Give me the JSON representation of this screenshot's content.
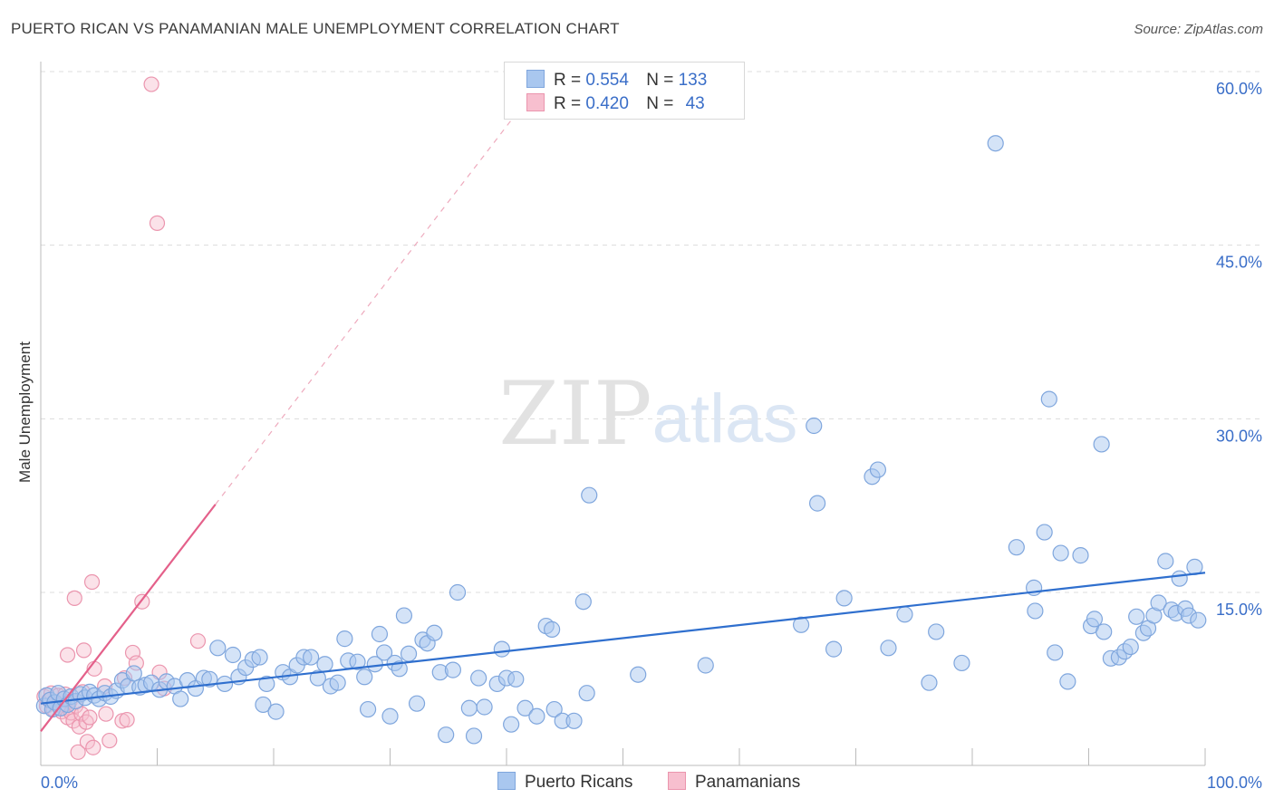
{
  "title": "PUERTO RICAN VS PANAMANIAN MALE UNEMPLOYMENT CORRELATION CHART",
  "source": "Source: ZipAtlas.com",
  "watermark": {
    "zip": "ZIP",
    "atlas": "atlas"
  },
  "legend_top": {
    "rows": [
      {
        "r_label": "R =",
        "r_value": "0.554",
        "n_label": "N =",
        "n_value": "133"
      },
      {
        "r_label": "R =",
        "r_value": "0.420",
        "n_label": "N =",
        "n_value": "43"
      }
    ]
  },
  "legend_bottom": {
    "series1": "Puerto Ricans",
    "series2": "Panamanians"
  },
  "colors": {
    "blue_fill": "#a9c7ef",
    "blue_stroke": "#7fa6dd",
    "blue_line": "#2f6fce",
    "pink_fill": "#f7bfcf",
    "pink_stroke": "#eb95ae",
    "pink_line": "#e4608a",
    "axis_text": "#3a6ec8",
    "grid": "#dcdcdc"
  },
  "chart_data": {
    "type": "scatter",
    "title": "PUERTO RICAN VS PANAMANIAN MALE UNEMPLOYMENT CORRELATION CHART",
    "xlabel": "",
    "ylabel": "Male Unemployment",
    "xlim": [
      0,
      100
    ],
    "ylim": [
      0,
      63
    ],
    "x_tick_labels": [
      "0.0%",
      "100.0%"
    ],
    "y_ticks": [
      15,
      30,
      45,
      60
    ],
    "y_tick_labels": [
      "15.0%",
      "30.0%",
      "45.0%",
      "60.0%"
    ],
    "series": [
      {
        "name": "Puerto Ricans",
        "r": 0.554,
        "n": 133,
        "trend": {
          "x": [
            0,
            100
          ],
          "y": [
            5.4,
            16.7
          ]
        },
        "points": [
          [
            0.3,
            5.2
          ],
          [
            0.5,
            6.1
          ],
          [
            0.8,
            5.7
          ],
          [
            1.0,
            4.9
          ],
          [
            1.2,
            5.5
          ],
          [
            1.5,
            6.3
          ],
          [
            1.7,
            5.0
          ],
          [
            2.0,
            5.8
          ],
          [
            2.3,
            5.3
          ],
          [
            2.6,
            6.0
          ],
          [
            3.0,
            5.6
          ],
          [
            3.4,
            6.2
          ],
          [
            3.8,
            5.9
          ],
          [
            4.2,
            6.4
          ],
          [
            4.6,
            6.1
          ],
          [
            5.0,
            5.8
          ],
          [
            5.5,
            6.3
          ],
          [
            6.0,
            6.0
          ],
          [
            6.5,
            6.5
          ],
          [
            7.0,
            7.4
          ],
          [
            7.5,
            6.9
          ],
          [
            8.0,
            8.0
          ],
          [
            8.5,
            6.8
          ],
          [
            9.0,
            7.0
          ],
          [
            9.5,
            7.2
          ],
          [
            10.2,
            6.6
          ],
          [
            10.8,
            7.3
          ],
          [
            11.5,
            6.9
          ],
          [
            12.0,
            5.8
          ],
          [
            12.6,
            7.4
          ],
          [
            13.3,
            6.7
          ],
          [
            14.0,
            7.6
          ],
          [
            14.5,
            7.5
          ],
          [
            15.2,
            10.2
          ],
          [
            15.8,
            7.1
          ],
          [
            16.5,
            9.6
          ],
          [
            17.0,
            7.7
          ],
          [
            17.6,
            8.5
          ],
          [
            18.2,
            9.2
          ],
          [
            18.8,
            9.4
          ],
          [
            19.4,
            7.1
          ],
          [
            19.1,
            5.3
          ],
          [
            20.2,
            4.7
          ],
          [
            20.8,
            8.1
          ],
          [
            21.4,
            7.7
          ],
          [
            22.0,
            8.7
          ],
          [
            22.6,
            9.4
          ],
          [
            23.2,
            9.4
          ],
          [
            23.8,
            7.6
          ],
          [
            24.4,
            8.8
          ],
          [
            24.9,
            6.9
          ],
          [
            25.5,
            7.2
          ],
          [
            26.1,
            11.0
          ],
          [
            26.4,
            9.1
          ],
          [
            27.2,
            9.0
          ],
          [
            27.8,
            7.7
          ],
          [
            28.1,
            4.9
          ],
          [
            28.7,
            8.8
          ],
          [
            29.1,
            11.4
          ],
          [
            29.5,
            9.8
          ],
          [
            30.0,
            4.3
          ],
          [
            30.4,
            8.9
          ],
          [
            30.8,
            8.4
          ],
          [
            31.2,
            13.0
          ],
          [
            31.6,
            9.7
          ],
          [
            32.3,
            5.4
          ],
          [
            32.8,
            10.9
          ],
          [
            33.2,
            10.6
          ],
          [
            33.8,
            11.5
          ],
          [
            34.3,
            8.1
          ],
          [
            34.8,
            2.7
          ],
          [
            35.4,
            8.3
          ],
          [
            35.8,
            15.0
          ],
          [
            36.8,
            5.0
          ],
          [
            37.2,
            2.6
          ],
          [
            37.6,
            7.6
          ],
          [
            38.1,
            5.1
          ],
          [
            39.2,
            7.1
          ],
          [
            39.6,
            10.1
          ],
          [
            40.0,
            7.6
          ],
          [
            40.4,
            3.6
          ],
          [
            40.8,
            7.5
          ],
          [
            41.6,
            5.0
          ],
          [
            42.6,
            4.3
          ],
          [
            43.4,
            12.1
          ],
          [
            43.9,
            11.8
          ],
          [
            44.1,
            4.9
          ],
          [
            44.8,
            3.9
          ],
          [
            45.8,
            3.9
          ],
          [
            46.6,
            14.2
          ],
          [
            46.9,
            6.3
          ],
          [
            47.1,
            23.4
          ],
          [
            51.3,
            7.9
          ],
          [
            57.1,
            8.7
          ],
          [
            65.3,
            12.2
          ],
          [
            66.4,
            29.4
          ],
          [
            66.7,
            22.7
          ],
          [
            68.1,
            10.1
          ],
          [
            69.0,
            14.5
          ],
          [
            71.4,
            25.0
          ],
          [
            71.9,
            25.6
          ],
          [
            72.8,
            10.2
          ],
          [
            74.2,
            13.1
          ],
          [
            76.3,
            7.2
          ],
          [
            76.9,
            11.6
          ],
          [
            79.1,
            8.9
          ],
          [
            82.0,
            53.8
          ],
          [
            83.8,
            18.9
          ],
          [
            85.3,
            15.4
          ],
          [
            85.4,
            13.4
          ],
          [
            86.2,
            20.2
          ],
          [
            86.6,
            31.7
          ],
          [
            87.1,
            9.8
          ],
          [
            87.6,
            18.4
          ],
          [
            88.2,
            7.3
          ],
          [
            89.3,
            18.2
          ],
          [
            90.2,
            12.1
          ],
          [
            90.5,
            12.7
          ],
          [
            91.1,
            27.8
          ],
          [
            91.3,
            11.6
          ],
          [
            91.9,
            9.3
          ],
          [
            92.6,
            9.4
          ],
          [
            93.1,
            9.9
          ],
          [
            93.6,
            10.3
          ],
          [
            94.1,
            12.9
          ],
          [
            94.7,
            11.5
          ],
          [
            95.1,
            11.9
          ],
          [
            95.6,
            13.0
          ],
          [
            96.0,
            14.1
          ],
          [
            96.6,
            17.7
          ],
          [
            97.1,
            13.5
          ],
          [
            97.5,
            13.2
          ],
          [
            97.8,
            16.2
          ],
          [
            98.3,
            13.6
          ],
          [
            98.6,
            13.0
          ],
          [
            99.1,
            17.2
          ],
          [
            99.4,
            12.6
          ]
        ]
      },
      {
        "name": "Panamanians",
        "r": 0.42,
        "n": 43,
        "trend": {
          "x": [
            0,
            15
          ],
          "y": [
            3.0,
            22.6
          ]
        },
        "trend_extended": {
          "x": [
            15,
            44
          ],
          "y": [
            22.6,
            60.5
          ]
        },
        "points": [
          [
            0.3,
            6.0
          ],
          [
            0.5,
            5.2
          ],
          [
            0.7,
            5.7
          ],
          [
            0.9,
            6.3
          ],
          [
            1.1,
            4.9
          ],
          [
            1.3,
            5.5
          ],
          [
            1.5,
            6.1
          ],
          [
            1.6,
            5.3
          ],
          [
            1.8,
            4.7
          ],
          [
            2.0,
            5.0
          ],
          [
            2.1,
            6.2
          ],
          [
            2.3,
            4.2
          ],
          [
            2.5,
            5.6
          ],
          [
            2.6,
            4.6
          ],
          [
            2.8,
            3.9
          ],
          [
            3.0,
            5.2
          ],
          [
            3.2,
            1.2
          ],
          [
            3.3,
            3.4
          ],
          [
            3.5,
            4.5
          ],
          [
            3.6,
            6.4
          ],
          [
            3.7,
            10.0
          ],
          [
            3.9,
            3.8
          ],
          [
            4.0,
            2.1
          ],
          [
            4.2,
            4.2
          ],
          [
            4.4,
            15.9
          ],
          [
            4.5,
            1.6
          ],
          [
            4.6,
            8.4
          ],
          [
            5.5,
            6.9
          ],
          [
            5.6,
            4.5
          ],
          [
            5.9,
            2.2
          ],
          [
            7.0,
            3.9
          ],
          [
            7.2,
            7.6
          ],
          [
            7.4,
            4.0
          ],
          [
            7.9,
            9.8
          ],
          [
            8.2,
            8.9
          ],
          [
            8.7,
            14.2
          ],
          [
            9.5,
            58.9
          ],
          [
            10.0,
            46.9
          ],
          [
            10.2,
            8.1
          ],
          [
            10.6,
            6.7
          ],
          [
            13.5,
            10.8
          ],
          [
            2.9,
            14.5
          ],
          [
            2.3,
            9.6
          ]
        ]
      }
    ]
  }
}
